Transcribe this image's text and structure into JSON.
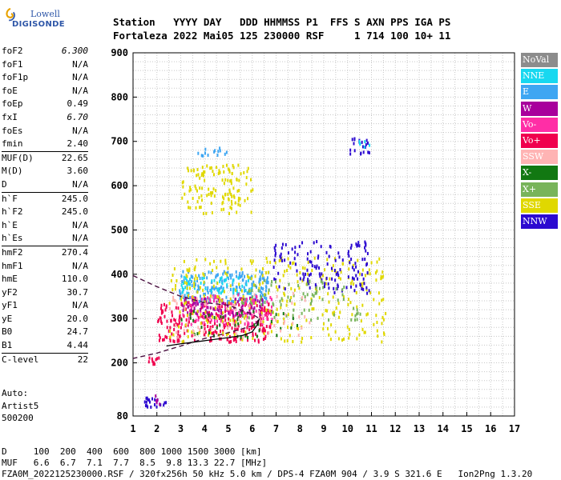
{
  "logo": {
    "line1": "Lowell",
    "line2": "DIGISONDE"
  },
  "header": {
    "line1": "Station   YYYY DAY   DDD HHMMSS P1  FFS S AXN PPS IGA PS",
    "line2": "Fortaleza 2022 Mai05 125 230000 RSF     1 714 100 10+ 11"
  },
  "params": [
    {
      "k": "foF2",
      "v": "6.300",
      "italic": true
    },
    {
      "k": "foF1",
      "v": "N/A"
    },
    {
      "k": "foF1p",
      "v": "N/A"
    },
    {
      "k": "foE",
      "v": "N/A"
    },
    {
      "k": "foEp",
      "v": "0.49"
    },
    {
      "k": "fxI",
      "v": "6.70",
      "italic": true
    },
    {
      "k": "foEs",
      "v": "N/A"
    },
    {
      "k": "fmin",
      "v": "2.40"
    },
    {
      "k": "MUF(D)",
      "v": "22.65",
      "sep": true
    },
    {
      "k": "M(D)",
      "v": "3.60"
    },
    {
      "k": "D",
      "v": "N/A"
    },
    {
      "k": "h`F",
      "v": "245.0",
      "sep": true
    },
    {
      "k": "h`F2",
      "v": "245.0"
    },
    {
      "k": "h`E",
      "v": "N/A"
    },
    {
      "k": "h`Es",
      "v": "N/A"
    },
    {
      "k": "hmF2",
      "v": "270.4",
      "sep": true
    },
    {
      "k": "hmF1",
      "v": "N/A"
    },
    {
      "k": "hmE",
      "v": "110.0"
    },
    {
      "k": "yF2",
      "v": "30.7"
    },
    {
      "k": "yF1",
      "v": "N/A"
    },
    {
      "k": "yE",
      "v": "20.0"
    },
    {
      "k": "B0",
      "v": "24.7"
    },
    {
      "k": "B1",
      "v": "4.44"
    },
    {
      "k": "C-level",
      "v": "22",
      "sep": true
    }
  ],
  "auto": {
    "l1": "Auto:",
    "l2": "Artist5",
    "l3": "500200"
  },
  "legend": [
    {
      "label": "NoVal",
      "color": "#8c8c8c"
    },
    {
      "label": "NNE",
      "color": "#18d8f0"
    },
    {
      "label": "E",
      "color": "#3ea6f2"
    },
    {
      "label": "W",
      "color": "#a8009c"
    },
    {
      "label": "Vo-",
      "color": "#ff2ea6"
    },
    {
      "label": "Vo+",
      "color": "#f0004e"
    },
    {
      "label": "SSW",
      "color": "#ffb4b4"
    },
    {
      "label": "X-",
      "color": "#127812"
    },
    {
      "label": "X+",
      "color": "#78b45a"
    },
    {
      "label": "SSE",
      "color": "#e0d800"
    },
    {
      "label": "NNW",
      "color": "#2c0ad0"
    }
  ],
  "footer": {
    "d_row": "D     100  200  400  600  800 1000 1500 3000 [km]",
    "muf_row": "MUF   6.6  6.7  7.1  7.7  8.5  9.8 13.3 22.7 [MHz]",
    "info": "FZA0M_2022125230000.RSF / 320fx256h 50 kHz 5.0 km / DPS-4 FZA0M 904 / 3.9 S 321.6 E   Ion2Png 1.3.20"
  },
  "chart_data": {
    "type": "scatter",
    "title": "",
    "xlabel": "",
    "ylabel": "",
    "xlim": [
      1,
      17
    ],
    "ylim": [
      80,
      900
    ],
    "x_ticks": [
      1,
      2,
      3,
      4,
      5,
      6,
      7,
      8,
      9,
      10,
      11,
      12,
      13,
      14,
      15,
      16,
      17
    ],
    "y_ticks": [
      80,
      200,
      300,
      400,
      500,
      600,
      700,
      800,
      900
    ],
    "grid": true,
    "legend_position": "right",
    "clusters": [
      {
        "series": "SSE",
        "x_range": [
          3.0,
          6.0
        ],
        "h_range": [
          540,
          650
        ],
        "count": 130
      },
      {
        "series": "E",
        "x_range": [
          3.6,
          5.2
        ],
        "h_range": [
          670,
          690
        ],
        "count": 14
      },
      {
        "series": "E",
        "x_range": [
          2.9,
          6.7
        ],
        "h_range": [
          340,
          410
        ],
        "count": 200
      },
      {
        "series": "NNE",
        "x_range": [
          3.0,
          6.2
        ],
        "h_range": [
          360,
          400
        ],
        "count": 60
      },
      {
        "series": "Vo+",
        "x_range": [
          2.0,
          6.8
        ],
        "h_range": [
          250,
          340
        ],
        "count": 260
      },
      {
        "series": "Vo-",
        "x_range": [
          3.0,
          6.8
        ],
        "h_range": [
          290,
          360
        ],
        "count": 120
      },
      {
        "series": "W",
        "x_range": [
          3.0,
          6.5
        ],
        "h_range": [
          310,
          350
        ],
        "count": 110
      },
      {
        "series": "SSE",
        "x_range": [
          2.5,
          11.6
        ],
        "h_range": [
          250,
          440
        ],
        "count": 330
      },
      {
        "series": "NNW",
        "x_range": [
          6.8,
          10.9
        ],
        "h_range": [
          360,
          480
        ],
        "count": 140
      },
      {
        "series": "X+",
        "x_range": [
          5.5,
          10.5
        ],
        "h_range": [
          300,
          390
        ],
        "count": 80
      },
      {
        "series": "X-",
        "x_range": [
          2.5,
          8.0
        ],
        "h_range": [
          260,
          320
        ],
        "count": 40
      },
      {
        "series": "SSW",
        "x_range": [
          2.5,
          8.5
        ],
        "h_range": [
          260,
          360
        ],
        "count": 60
      },
      {
        "series": "NNW",
        "x_range": [
          10.0,
          10.9
        ],
        "h_range": [
          670,
          710
        ],
        "count": 20
      },
      {
        "series": "NNE",
        "x_range": [
          10.4,
          10.9
        ],
        "h_range": [
          690,
          705
        ],
        "count": 6
      },
      {
        "series": "NNW",
        "x_range": [
          1.4,
          2.4
        ],
        "h_range": [
          100,
          125
        ],
        "count": 20
      },
      {
        "series": "W",
        "x_range": [
          1.9,
          2.2
        ],
        "h_range": [
          110,
          130
        ],
        "count": 6
      },
      {
        "series": "Vo+",
        "x_range": [
          1.5,
          2.3
        ],
        "h_range": [
          200,
          215
        ],
        "count": 10
      }
    ],
    "profile_dashed": [
      [
        1,
        397
      ],
      [
        2,
        372
      ],
      [
        3,
        350
      ],
      [
        4,
        336
      ],
      [
        5,
        330
      ],
      [
        6,
        310
      ],
      [
        6.3,
        300
      ],
      [
        6.1,
        285
      ],
      [
        5.0,
        268
      ],
      [
        4.0,
        255
      ],
      [
        3.0,
        238
      ],
      [
        2.0,
        222
      ],
      [
        1,
        210
      ]
    ],
    "trace_solid": [
      [
        2.4,
        238
      ],
      [
        3,
        243
      ],
      [
        4,
        250
      ],
      [
        5,
        257
      ],
      [
        5.6,
        262
      ],
      [
        6.0,
        270
      ],
      [
        6.2,
        285
      ],
      [
        6.3,
        300
      ]
    ]
  }
}
